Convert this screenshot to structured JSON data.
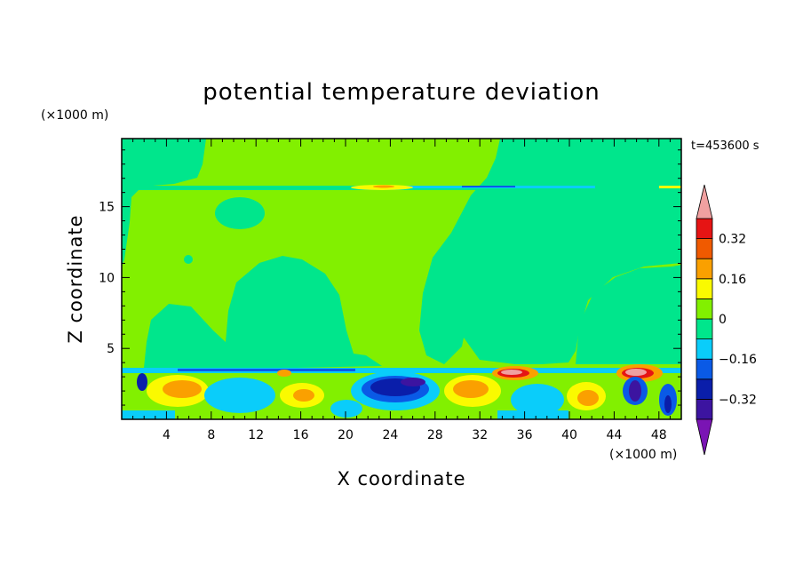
{
  "chart_data": {
    "type": "heatmap",
    "title": "potential temperature deviation",
    "xlabel": "X coordinate",
    "ylabel": "Z coordinate",
    "x_unit": "(×1000 m)",
    "y_unit": "(×1000 m)",
    "time_label": "t=453600 s",
    "xlim": [
      0,
      50
    ],
    "ylim": [
      0,
      19.8
    ],
    "x_ticks": [
      4,
      8,
      12,
      16,
      20,
      24,
      28,
      32,
      36,
      40,
      44,
      48
    ],
    "y_ticks": [
      5,
      10,
      15
    ],
    "colorbar": {
      "levels": [
        -0.4,
        -0.32,
        -0.24,
        -0.16,
        -0.08,
        0,
        0.08,
        0.16,
        0.24,
        0.32,
        0.4
      ],
      "labels": [
        "0.32",
        "0.16",
        "0",
        "−0.16",
        "−0.32"
      ],
      "label_values": [
        0.32,
        0.16,
        0,
        -0.16,
        -0.32
      ],
      "colors": [
        "#7a14b4",
        "#3c14a0",
        "#0a1eaa",
        "#0a5ae6",
        "#0acdfa",
        "#00e68c",
        "#82f000",
        "#fafa00",
        "#faa000",
        "#f05a00",
        "#e61414",
        "#f0a0a0"
      ],
      "extend": "both"
    }
  }
}
